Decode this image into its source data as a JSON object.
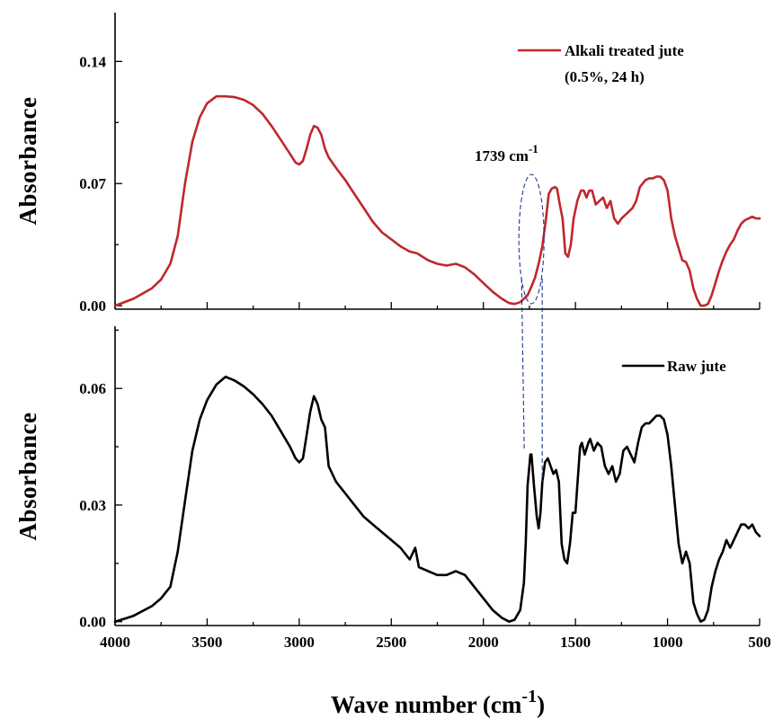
{
  "chart_data": [
    {
      "id": "top",
      "type": "line",
      "xlabel": "",
      "ylabel": "Absorbance",
      "xlim": [
        4000,
        500
      ],
      "ylim": [
        -0.002,
        0.168
      ],
      "xticks": [
        4000,
        3500,
        3000,
        2500,
        2000,
        1500,
        1000,
        500
      ],
      "xtick_labels": [],
      "yticks": [
        0.0,
        0.07,
        0.14
      ],
      "ytick_labels": [
        "0.00",
        "0.07",
        "0.14"
      ],
      "legend_position": "top-right",
      "annotation": {
        "text": "1739 cm",
        "superscript": "-1",
        "x": 1739
      },
      "series": [
        {
          "name": "Alkali treated jute",
          "name_line2": "(0.5%, 24 h)",
          "color": "#c0272d",
          "points": [
            [
              4000,
              0.0
            ],
            [
              3900,
              0.004
            ],
            [
              3800,
              0.01
            ],
            [
              3750,
              0.015
            ],
            [
              3700,
              0.024
            ],
            [
              3660,
              0.04
            ],
            [
              3620,
              0.07
            ],
            [
              3580,
              0.094
            ],
            [
              3540,
              0.108
            ],
            [
              3500,
              0.116
            ],
            [
              3450,
              0.12
            ],
            [
              3400,
              0.12
            ],
            [
              3350,
              0.1195
            ],
            [
              3300,
              0.118
            ],
            [
              3250,
              0.115
            ],
            [
              3200,
              0.11
            ],
            [
              3150,
              0.103
            ],
            [
              3100,
              0.095
            ],
            [
              3050,
              0.087
            ],
            [
              3020,
              0.082
            ],
            [
              3000,
              0.081
            ],
            [
              2980,
              0.083
            ],
            [
              2960,
              0.09
            ],
            [
              2940,
              0.098
            ],
            [
              2920,
              0.103
            ],
            [
              2900,
              0.102
            ],
            [
              2880,
              0.098
            ],
            [
              2860,
              0.09
            ],
            [
              2840,
              0.085
            ],
            [
              2800,
              0.079
            ],
            [
              2750,
              0.072
            ],
            [
              2700,
              0.064
            ],
            [
              2650,
              0.056
            ],
            [
              2600,
              0.048
            ],
            [
              2550,
              0.042
            ],
            [
              2500,
              0.038
            ],
            [
              2450,
              0.034
            ],
            [
              2400,
              0.031
            ],
            [
              2360,
              0.03
            ],
            [
              2300,
              0.026
            ],
            [
              2250,
              0.024
            ],
            [
              2200,
              0.023
            ],
            [
              2150,
              0.024
            ],
            [
              2100,
              0.022
            ],
            [
              2050,
              0.018
            ],
            [
              2000,
              0.013
            ],
            [
              1950,
              0.008
            ],
            [
              1900,
              0.004
            ],
            [
              1860,
              0.0015
            ],
            [
              1830,
              0.001
            ],
            [
              1800,
              0.002
            ],
            [
              1760,
              0.006
            ],
            [
              1739,
              0.011
            ],
            [
              1720,
              0.016
            ],
            [
              1700,
              0.024
            ],
            [
              1680,
              0.034
            ],
            [
              1660,
              0.05
            ],
            [
              1645,
              0.064
            ],
            [
              1630,
              0.067
            ],
            [
              1610,
              0.068
            ],
            [
              1600,
              0.067
            ],
            [
              1585,
              0.058
            ],
            [
              1570,
              0.05
            ],
            [
              1555,
              0.03
            ],
            [
              1540,
              0.028
            ],
            [
              1525,
              0.035
            ],
            [
              1510,
              0.05
            ],
            [
              1490,
              0.06
            ],
            [
              1470,
              0.066
            ],
            [
              1455,
              0.066
            ],
            [
              1440,
              0.062
            ],
            [
              1425,
              0.066
            ],
            [
              1410,
              0.066
            ],
            [
              1390,
              0.058
            ],
            [
              1370,
              0.06
            ],
            [
              1350,
              0.062
            ],
            [
              1330,
              0.056
            ],
            [
              1310,
              0.06
            ],
            [
              1290,
              0.05
            ],
            [
              1270,
              0.047
            ],
            [
              1250,
              0.05
            ],
            [
              1230,
              0.052
            ],
            [
              1210,
              0.054
            ],
            [
              1190,
              0.056
            ],
            [
              1170,
              0.06
            ],
            [
              1150,
              0.068
            ],
            [
              1120,
              0.072
            ],
            [
              1100,
              0.073
            ],
            [
              1080,
              0.073
            ],
            [
              1060,
              0.074
            ],
            [
              1040,
              0.074
            ],
            [
              1020,
              0.072
            ],
            [
              1000,
              0.066
            ],
            [
              980,
              0.05
            ],
            [
              960,
              0.04
            ],
            [
              940,
              0.033
            ],
            [
              920,
              0.026
            ],
            [
              900,
              0.025
            ],
            [
              880,
              0.02
            ],
            [
              860,
              0.01
            ],
            [
              840,
              0.004
            ],
            [
              820,
              0.0
            ],
            [
              800,
              0.0
            ],
            [
              780,
              0.001
            ],
            [
              760,
              0.006
            ],
            [
              740,
              0.013
            ],
            [
              720,
              0.02
            ],
            [
              700,
              0.026
            ],
            [
              680,
              0.031
            ],
            [
              660,
              0.035
            ],
            [
              640,
              0.038
            ],
            [
              620,
              0.043
            ],
            [
              600,
              0.047
            ],
            [
              580,
              0.049
            ],
            [
              560,
              0.05
            ],
            [
              540,
              0.051
            ],
            [
              520,
              0.05
            ],
            [
              500,
              0.05
            ]
          ]
        }
      ]
    },
    {
      "id": "bottom",
      "type": "line",
      "xlabel": "Wave number (cm",
      "xlabel_superscript": "-1",
      "xlabel_suffix": ")",
      "ylabel": "Absorbance",
      "xlim": [
        4000,
        500
      ],
      "ylim": [
        -0.001,
        0.076
      ],
      "xticks": [
        4000,
        3500,
        3000,
        2500,
        2000,
        1500,
        1000,
        500
      ],
      "xtick_labels": [
        "4000",
        "3500",
        "3000",
        "2500",
        "2000",
        "1500",
        "1000",
        "500"
      ],
      "yticks": [
        0.0,
        0.03,
        0.06
      ],
      "ytick_labels": [
        "0.00",
        "0.03",
        "0.06"
      ],
      "legend_position": "top-right",
      "series": [
        {
          "name": "Raw jute",
          "color": "#000000",
          "points": [
            [
              4000,
              0.0
            ],
            [
              3900,
              0.0015
            ],
            [
              3800,
              0.004
            ],
            [
              3750,
              0.006
            ],
            [
              3700,
              0.009
            ],
            [
              3660,
              0.018
            ],
            [
              3620,
              0.031
            ],
            [
              3580,
              0.044
            ],
            [
              3540,
              0.052
            ],
            [
              3500,
              0.057
            ],
            [
              3450,
              0.061
            ],
            [
              3400,
              0.063
            ],
            [
              3350,
              0.062
            ],
            [
              3300,
              0.0605
            ],
            [
              3250,
              0.0585
            ],
            [
              3200,
              0.056
            ],
            [
              3150,
              0.053
            ],
            [
              3100,
              0.049
            ],
            [
              3050,
              0.045
            ],
            [
              3020,
              0.042
            ],
            [
              3000,
              0.041
            ],
            [
              2980,
              0.042
            ],
            [
              2960,
              0.048
            ],
            [
              2940,
              0.054
            ],
            [
              2920,
              0.058
            ],
            [
              2900,
              0.056
            ],
            [
              2880,
              0.052
            ],
            [
              2860,
              0.05
            ],
            [
              2840,
              0.04
            ],
            [
              2800,
              0.036
            ],
            [
              2750,
              0.033
            ],
            [
              2700,
              0.03
            ],
            [
              2650,
              0.027
            ],
            [
              2600,
              0.025
            ],
            [
              2550,
              0.023
            ],
            [
              2500,
              0.021
            ],
            [
              2450,
              0.019
            ],
            [
              2400,
              0.016
            ],
            [
              2370,
              0.019
            ],
            [
              2350,
              0.014
            ],
            [
              2300,
              0.013
            ],
            [
              2250,
              0.012
            ],
            [
              2200,
              0.012
            ],
            [
              2150,
              0.013
            ],
            [
              2100,
              0.012
            ],
            [
              2050,
              0.009
            ],
            [
              2000,
              0.006
            ],
            [
              1950,
              0.003
            ],
            [
              1900,
              0.001
            ],
            [
              1860,
              0.0
            ],
            [
              1830,
              0.0005
            ],
            [
              1800,
              0.003
            ],
            [
              1780,
              0.01
            ],
            [
              1770,
              0.02
            ],
            [
              1760,
              0.035
            ],
            [
              1745,
              0.043
            ],
            [
              1739,
              0.043
            ],
            [
              1725,
              0.035
            ],
            [
              1710,
              0.027
            ],
            [
              1700,
              0.024
            ],
            [
              1690,
              0.028
            ],
            [
              1680,
              0.036
            ],
            [
              1665,
              0.041
            ],
            [
              1650,
              0.042
            ],
            [
              1635,
              0.04
            ],
            [
              1620,
              0.038
            ],
            [
              1605,
              0.039
            ],
            [
              1590,
              0.036
            ],
            [
              1575,
              0.02
            ],
            [
              1560,
              0.016
            ],
            [
              1545,
              0.015
            ],
            [
              1530,
              0.02
            ],
            [
              1515,
              0.028
            ],
            [
              1500,
              0.028
            ],
            [
              1490,
              0.035
            ],
            [
              1475,
              0.045
            ],
            [
              1465,
              0.046
            ],
            [
              1450,
              0.043
            ],
            [
              1430,
              0.046
            ],
            [
              1420,
              0.047
            ],
            [
              1400,
              0.044
            ],
            [
              1380,
              0.046
            ],
            [
              1360,
              0.045
            ],
            [
              1340,
              0.04
            ],
            [
              1320,
              0.038
            ],
            [
              1300,
              0.04
            ],
            [
              1280,
              0.036
            ],
            [
              1260,
              0.038
            ],
            [
              1240,
              0.044
            ],
            [
              1220,
              0.045
            ],
            [
              1200,
              0.043
            ],
            [
              1180,
              0.041
            ],
            [
              1160,
              0.046
            ],
            [
              1140,
              0.05
            ],
            [
              1120,
              0.051
            ],
            [
              1100,
              0.051
            ],
            [
              1080,
              0.052
            ],
            [
              1060,
              0.053
            ],
            [
              1040,
              0.053
            ],
            [
              1020,
              0.052
            ],
            [
              1000,
              0.048
            ],
            [
              980,
              0.04
            ],
            [
              960,
              0.03
            ],
            [
              940,
              0.02
            ],
            [
              920,
              0.015
            ],
            [
              900,
              0.018
            ],
            [
              880,
              0.015
            ],
            [
              860,
              0.005
            ],
            [
              840,
              0.002
            ],
            [
              820,
              0.0
            ],
            [
              800,
              0.0005
            ],
            [
              780,
              0.003
            ],
            [
              760,
              0.009
            ],
            [
              740,
              0.013
            ],
            [
              720,
              0.016
            ],
            [
              700,
              0.018
            ],
            [
              680,
              0.021
            ],
            [
              660,
              0.019
            ],
            [
              640,
              0.021
            ],
            [
              620,
              0.023
            ],
            [
              600,
              0.025
            ],
            [
              580,
              0.025
            ],
            [
              560,
              0.024
            ],
            [
              540,
              0.025
            ],
            [
              520,
              0.023
            ],
            [
              500,
              0.022
            ]
          ]
        }
      ]
    }
  ]
}
